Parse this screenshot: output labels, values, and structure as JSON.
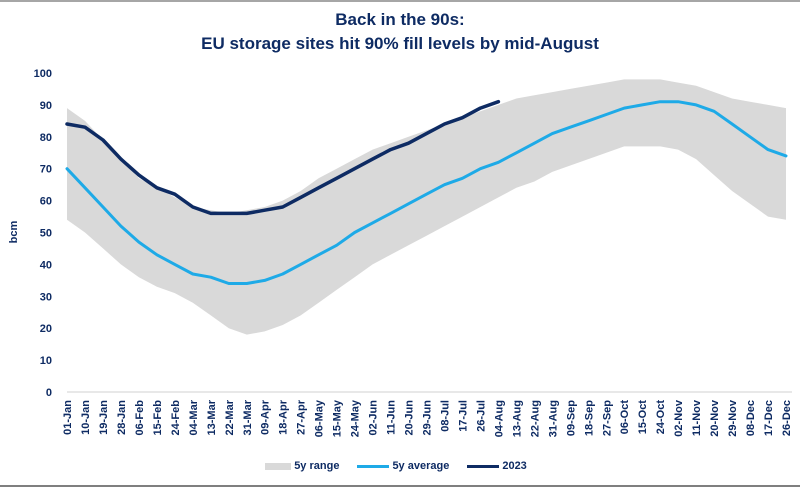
{
  "chart_data": {
    "type": "area",
    "title": [
      "Back in the 90s:",
      "EU storage sites hit 90% fill levels by mid-August"
    ],
    "xlabel": "",
    "ylabel": "bcm",
    "ylim": [
      0,
      100
    ],
    "yticks": [
      0,
      10,
      20,
      30,
      40,
      50,
      60,
      70,
      80,
      90,
      100
    ],
    "grid": false,
    "legend_position": "bottom",
    "categories": [
      "01-Jan",
      "10-Jan",
      "19-Jan",
      "28-Jan",
      "06-Feb",
      "15-Feb",
      "24-Feb",
      "04-Mar",
      "13-Mar",
      "22-Mar",
      "31-Mar",
      "09-Apr",
      "18-Apr",
      "27-Apr",
      "06-May",
      "15-May",
      "24-May",
      "02-Jun",
      "11-Jun",
      "20-Jun",
      "29-Jun",
      "08-Jul",
      "17-Jul",
      "26-Jul",
      "04-Aug",
      "13-Aug",
      "22-Aug",
      "31-Aug",
      "09-Sep",
      "18-Sep",
      "27-Sep",
      "06-Oct",
      "15-Oct",
      "24-Oct",
      "02-Nov",
      "11-Nov",
      "20-Nov",
      "29-Nov",
      "08-Dec",
      "17-Dec",
      "26-Dec"
    ],
    "series": [
      {
        "name": "5y range",
        "kind": "range",
        "color": "#d9d9d9",
        "low": [
          54,
          50,
          45,
          40,
          36,
          33,
          31,
          28,
          24,
          20,
          18,
          19,
          21,
          24,
          28,
          32,
          36,
          40,
          43,
          46,
          49,
          52,
          55,
          58,
          61,
          64,
          66,
          69,
          71,
          73,
          75,
          77,
          77,
          77,
          76,
          73,
          68,
          63,
          59,
          55,
          54
        ],
        "high": [
          89,
          85,
          79,
          73,
          67,
          64,
          61,
          58,
          57,
          56,
          57,
          58,
          60,
          63,
          67,
          70,
          73,
          76,
          78,
          80,
          82,
          84,
          86,
          88,
          90,
          92,
          93,
          94,
          95,
          96,
          97,
          98,
          98,
          98,
          97,
          96,
          94,
          92,
          91,
          90,
          89
        ]
      },
      {
        "name": "5y average",
        "kind": "line",
        "color": "#1eaae7",
        "values": [
          70,
          64,
          58,
          52,
          47,
          43,
          40,
          37,
          36,
          34,
          34,
          35,
          37,
          40,
          43,
          46,
          50,
          53,
          56,
          59,
          62,
          65,
          67,
          70,
          72,
          75,
          78,
          81,
          83,
          85,
          87,
          89,
          90,
          91,
          91,
          90,
          88,
          84,
          80,
          76,
          74
        ]
      },
      {
        "name": "2023",
        "kind": "line",
        "color": "#0e2b63",
        "values": [
          84,
          83,
          79,
          73,
          68,
          64,
          62,
          58,
          56,
          56,
          56,
          57,
          58,
          61,
          64,
          67,
          70,
          73,
          76,
          78,
          81,
          84,
          86,
          89,
          91,
          null,
          null,
          null,
          null,
          null,
          null,
          null,
          null,
          null,
          null,
          null,
          null,
          null,
          null,
          null,
          null
        ]
      }
    ]
  }
}
